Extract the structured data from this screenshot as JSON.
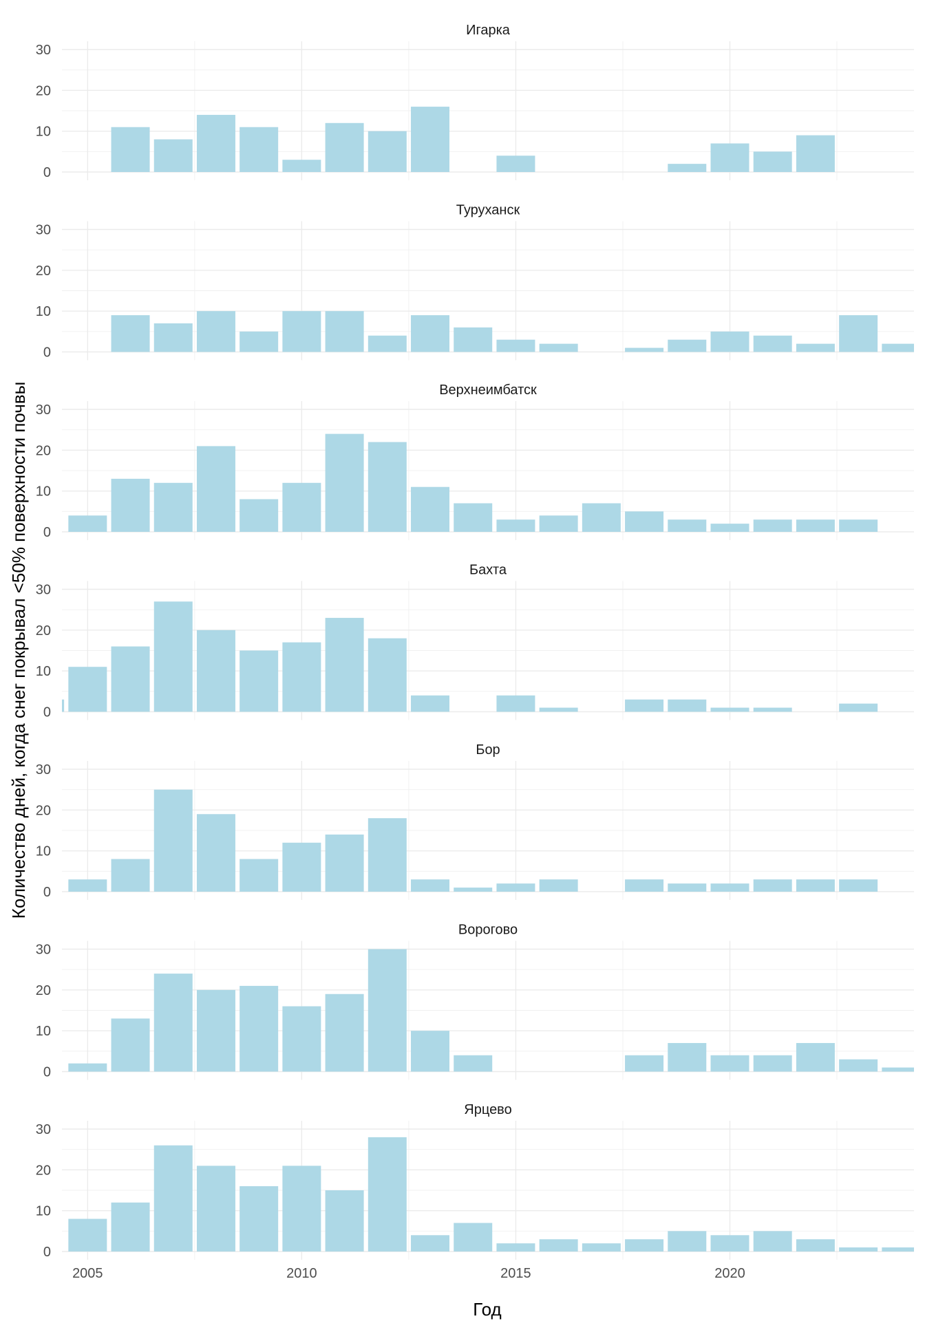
{
  "chart_data": {
    "type": "bar",
    "layout": "faceted, one column",
    "xlabel": "Год",
    "ylabel": "Количество дней, когда снег покрывал  <50% поверхности почвы",
    "ylim": [
      0,
      30
    ],
    "yticks": [
      0,
      10,
      20,
      30
    ],
    "xlim": [
      2004.4,
      2024.3
    ],
    "xticks": [
      2005,
      2010,
      2015,
      2020
    ],
    "xticklabels": [
      "2005",
      "2010",
      "2015",
      "2020"
    ],
    "grid": true,
    "bar_color": "#add8e6",
    "years": [
      2004,
      2005,
      2006,
      2007,
      2008,
      2009,
      2010,
      2011,
      2012,
      2013,
      2014,
      2015,
      2016,
      2017,
      2018,
      2019,
      2020,
      2021,
      2022,
      2023,
      2024
    ],
    "panels": [
      {
        "name": "Игарка",
        "values": [
          0,
          0,
          11,
          8,
          14,
          11,
          3,
          12,
          10,
          16,
          0,
          4,
          0,
          0,
          0,
          2,
          7,
          5,
          9,
          0,
          0
        ]
      },
      {
        "name": "Туруханск",
        "values": [
          0,
          0,
          9,
          7,
          10,
          5,
          10,
          10,
          4,
          9,
          6,
          3,
          2,
          0,
          1,
          3,
          5,
          4,
          2,
          9,
          2
        ]
      },
      {
        "name": "Верхнеимбатск",
        "values": [
          0,
          4,
          13,
          12,
          21,
          8,
          12,
          24,
          22,
          11,
          7,
          3,
          4,
          7,
          5,
          3,
          2,
          3,
          3,
          3,
          0
        ]
      },
      {
        "name": "Бахта",
        "values": [
          3,
          11,
          16,
          27,
          20,
          15,
          17,
          23,
          18,
          4,
          0,
          4,
          1,
          0,
          3,
          3,
          1,
          1,
          0,
          2,
          0
        ]
      },
      {
        "name": "Бор",
        "values": [
          0,
          3,
          8,
          25,
          19,
          8,
          12,
          14,
          18,
          3,
          1,
          2,
          3,
          0,
          3,
          2,
          2,
          3,
          3,
          3,
          0
        ]
      },
      {
        "name": "Ворогово",
        "values": [
          0,
          2,
          13,
          24,
          20,
          21,
          16,
          19,
          30,
          10,
          4,
          0,
          0,
          0,
          4,
          7,
          4,
          4,
          7,
          3,
          1
        ]
      },
      {
        "name": "Ярцево",
        "values": [
          0,
          8,
          12,
          26,
          21,
          16,
          21,
          15,
          28,
          4,
          7,
          2,
          3,
          2,
          3,
          5,
          4,
          5,
          3,
          1,
          1
        ]
      }
    ]
  }
}
